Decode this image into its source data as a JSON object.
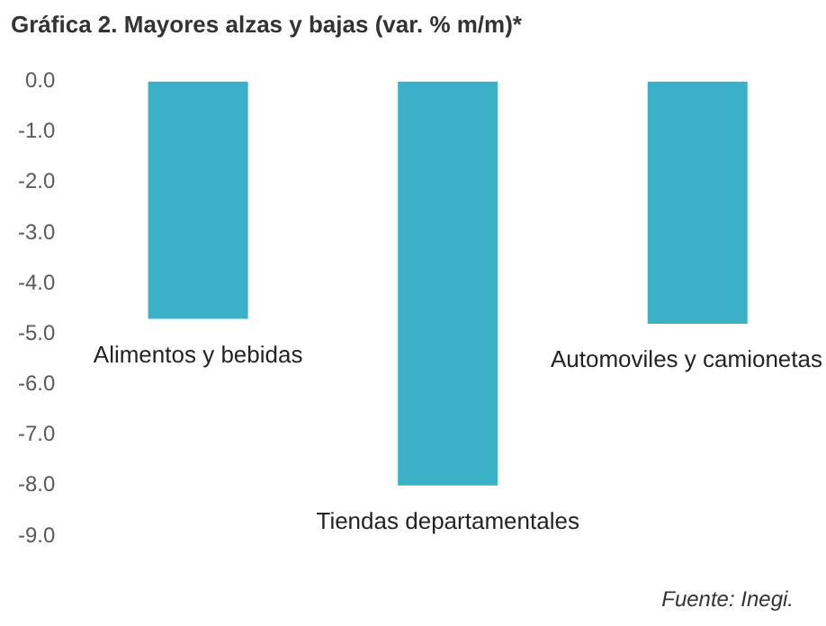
{
  "chart_data": {
    "type": "bar",
    "title": "Gráfica 2. Mayores alzas y bajas (var. % m/m)*",
    "categories": [
      "Alimentos y bebidas",
      "Tiendas departamentales",
      "Automoviles y camionetas"
    ],
    "values": [
      -4.7,
      -8.0,
      -4.8
    ],
    "color": "#3bb1c8",
    "ylim": [
      -9,
      0
    ],
    "yticks": [
      {
        "value": 0,
        "label": "0.0"
      },
      {
        "value": -1,
        "label": "-1.0"
      },
      {
        "value": -2,
        "label": "-2.0"
      },
      {
        "value": -3,
        "label": "-3.0"
      },
      {
        "value": -4,
        "label": "-4.0"
      },
      {
        "value": -5,
        "label": "-5.0"
      },
      {
        "value": -6,
        "label": "-6.0"
      },
      {
        "value": -7,
        "label": "-7.0"
      },
      {
        "value": -8,
        "label": "-8.0"
      },
      {
        "value": -9,
        "label": "-9.0"
      }
    ],
    "grid": false,
    "legend": false,
    "annotations": [
      "Fuente: Inegi."
    ]
  }
}
